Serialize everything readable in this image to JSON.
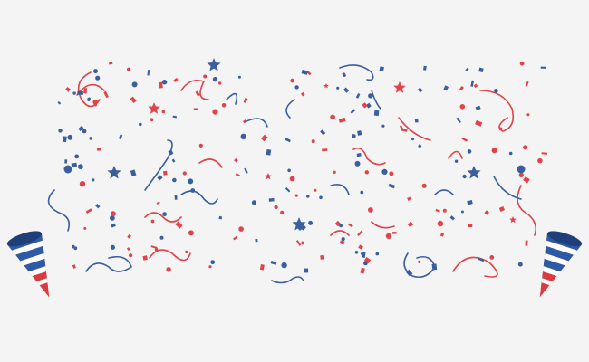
{
  "colors": {
    "background": "#f4f4f4",
    "blue": "#3a5f9e",
    "red": "#e0434a",
    "cone_blue": "#2d5aa6",
    "cone_white": "#ffffff",
    "cone_red": "#d93b3f"
  },
  "icons": {
    "left_cone": "party-popper-icon",
    "right_cone": "party-popper-icon",
    "star": "star-icon",
    "dot": "confetti-dot-icon",
    "streamer": "ribbon-streamer-icon"
  }
}
